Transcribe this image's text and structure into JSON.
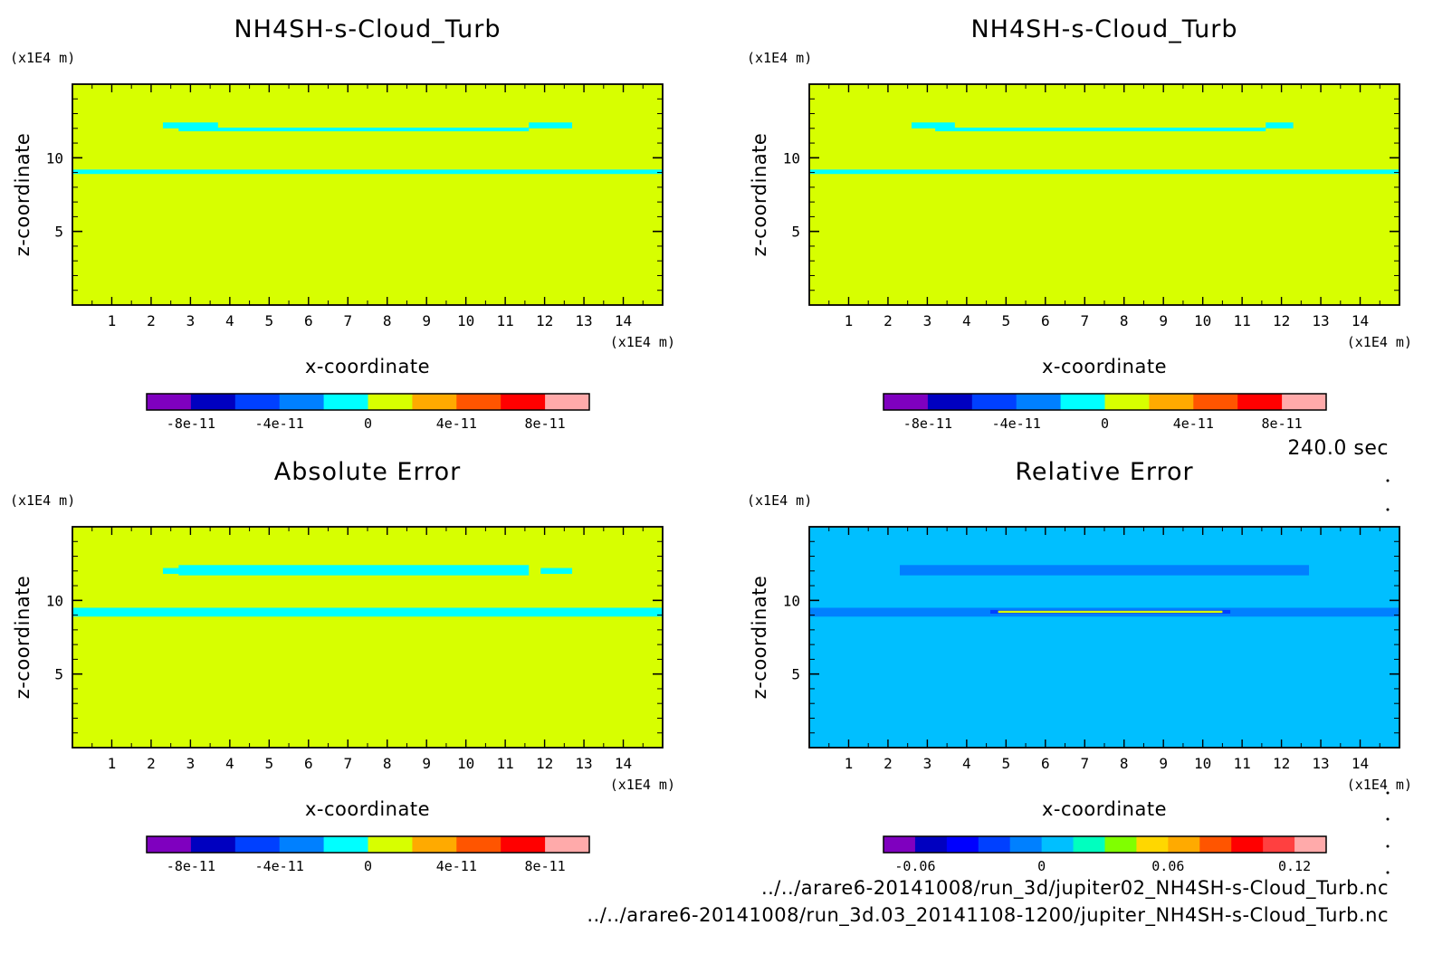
{
  "time_label": "240.0 sec",
  "files": [
    "../../arare6-20141008/run_3d/jupiter02_NH4SH-s-Cloud_Turb.nc",
    "../../arare6-20141008/run_3d.03_20141108-1200/jupiter_NH4SH-s-Cloud_Turb.nc"
  ],
  "colors": {
    "background_yellow": "#d7ff00",
    "band_cyan": "#00ffff",
    "background_blue": "#00bfff",
    "band_blue": "#0080ff",
    "band_darkblue": "#0040ff"
  },
  "chart_data": [
    {
      "type": "heatmap",
      "title": "NH4SH-s-Cloud_Turb",
      "xlabel": "x-coordinate",
      "ylabel": "z-coordinate",
      "xunit": "(x1E4 m)",
      "yunit": "(x1E4 m)",
      "xlim": [
        0,
        15
      ],
      "ylim": [
        0,
        15
      ],
      "xticks": [
        "1",
        "2",
        "3",
        "4",
        "5",
        "6",
        "7",
        "8",
        "9",
        "10",
        "11",
        "12",
        "13",
        "14"
      ],
      "yticks": [
        "5",
        "10"
      ],
      "background": "#d7ff00",
      "bands": [
        {
          "x0": 0,
          "x1": 15,
          "z0": 8.9,
          "z1": 9.2,
          "color": "#00ffff"
        },
        {
          "x0": 2.7,
          "x1": 11.6,
          "z0": 11.8,
          "z1": 12.05,
          "color": "#00ffff"
        },
        {
          "x0": 2.3,
          "x1": 3.7,
          "z0": 12.0,
          "z1": 12.4,
          "color": "#00ffff"
        },
        {
          "x0": 11.6,
          "x1": 12.7,
          "z0": 12.0,
          "z1": 12.4,
          "color": "#00ffff"
        }
      ],
      "colorbar": {
        "colors": [
          "#7f00bf",
          "#0000c0",
          "#0040ff",
          "#0080ff",
          "#00ffff",
          "#d7ff00",
          "#ffaa00",
          "#ff5500",
          "#ff0000",
          "#ffaaaa"
        ],
        "labels": [
          "-8e-11",
          "-4e-11",
          "0",
          "4e-11",
          "8e-11"
        ],
        "label_positions": [
          1,
          3,
          5,
          7,
          9
        ]
      }
    },
    {
      "type": "heatmap",
      "title": "NH4SH-s-Cloud_Turb",
      "xlabel": "x-coordinate",
      "ylabel": "z-coordinate",
      "xunit": "(x1E4 m)",
      "yunit": "(x1E4 m)",
      "xlim": [
        0,
        15
      ],
      "ylim": [
        0,
        15
      ],
      "xticks": [
        "1",
        "2",
        "3",
        "4",
        "5",
        "6",
        "7",
        "8",
        "9",
        "10",
        "11",
        "12",
        "13",
        "14"
      ],
      "yticks": [
        "5",
        "10"
      ],
      "background": "#d7ff00",
      "bands": [
        {
          "x0": 0,
          "x1": 15,
          "z0": 8.9,
          "z1": 9.2,
          "color": "#00ffff"
        },
        {
          "x0": 3.2,
          "x1": 11.6,
          "z0": 11.8,
          "z1": 12.05,
          "color": "#00ffff"
        },
        {
          "x0": 2.6,
          "x1": 3.7,
          "z0": 12.0,
          "z1": 12.4,
          "color": "#00ffff"
        },
        {
          "x0": 11.6,
          "x1": 12.3,
          "z0": 12.0,
          "z1": 12.4,
          "color": "#00ffff"
        }
      ],
      "colorbar": {
        "colors": [
          "#7f00bf",
          "#0000c0",
          "#0040ff",
          "#0080ff",
          "#00ffff",
          "#d7ff00",
          "#ffaa00",
          "#ff5500",
          "#ff0000",
          "#ffaaaa"
        ],
        "labels": [
          "-8e-11",
          "-4e-11",
          "0",
          "4e-11",
          "8e-11"
        ],
        "label_positions": [
          1,
          3,
          5,
          7,
          9
        ]
      }
    },
    {
      "type": "heatmap",
      "title": "Absolute Error",
      "xlabel": "x-coordinate",
      "ylabel": "z-coordinate",
      "xunit": "(x1E4 m)",
      "yunit": "(x1E4 m)",
      "xlim": [
        0,
        15
      ],
      "ylim": [
        0,
        15
      ],
      "xticks": [
        "1",
        "2",
        "3",
        "4",
        "5",
        "6",
        "7",
        "8",
        "9",
        "10",
        "11",
        "12",
        "13",
        "14"
      ],
      "yticks": [
        "5",
        "10"
      ],
      "background": "#d7ff00",
      "bands": [
        {
          "x0": 0,
          "x1": 15,
          "z0": 8.9,
          "z1": 9.5,
          "color": "#00ffff"
        },
        {
          "x0": 2.7,
          "x1": 11.6,
          "z0": 11.7,
          "z1": 12.4,
          "color": "#00ffff"
        },
        {
          "x0": 2.3,
          "x1": 3.3,
          "z0": 11.8,
          "z1": 12.2,
          "color": "#00ffff"
        },
        {
          "x0": 11.9,
          "x1": 12.7,
          "z0": 11.8,
          "z1": 12.2,
          "color": "#00ffff"
        }
      ],
      "colorbar": {
        "colors": [
          "#7f00bf",
          "#0000c0",
          "#0040ff",
          "#0080ff",
          "#00ffff",
          "#d7ff00",
          "#ffaa00",
          "#ff5500",
          "#ff0000",
          "#ffaaaa"
        ],
        "labels": [
          "-8e-11",
          "-4e-11",
          "0",
          "4e-11",
          "8e-11"
        ],
        "label_positions": [
          1,
          3,
          5,
          7,
          9
        ]
      }
    },
    {
      "type": "heatmap",
      "title": "Relative Error",
      "xlabel": "x-coordinate",
      "ylabel": "z-coordinate",
      "xunit": "(x1E4 m)",
      "yunit": "(x1E4 m)",
      "xlim": [
        0,
        15
      ],
      "ylim": [
        0,
        15
      ],
      "xticks": [
        "1",
        "2",
        "3",
        "4",
        "5",
        "6",
        "7",
        "8",
        "9",
        "10",
        "11",
        "12",
        "13",
        "14"
      ],
      "yticks": [
        "5",
        "10"
      ],
      "background": "#00bfff",
      "bands": [
        {
          "x0": 0,
          "x1": 15,
          "z0": 8.9,
          "z1": 9.5,
          "color": "#0080ff"
        },
        {
          "x0": 2.3,
          "x1": 12.7,
          "z0": 11.7,
          "z1": 12.4,
          "color": "#0080ff"
        },
        {
          "x0": 4.6,
          "x1": 10.7,
          "z0": 9.1,
          "z1": 9.35,
          "color": "#0040ff"
        },
        {
          "x0": 4.8,
          "x1": 10.5,
          "z0": 9.15,
          "z1": 9.3,
          "color": "#d7ff00"
        }
      ],
      "colorbar": {
        "colors": [
          "#7f00bf",
          "#0000c0",
          "#0000ff",
          "#0040ff",
          "#0080ff",
          "#00bfff",
          "#00ffbf",
          "#80ff00",
          "#ffd700",
          "#ffaa00",
          "#ff5500",
          "#ff0000",
          "#ff4040",
          "#ffaaaa"
        ],
        "labels": [
          "-0.06",
          "0",
          "0.06",
          "0.12"
        ],
        "label_positions": [
          1,
          5,
          9,
          13
        ]
      }
    }
  ]
}
